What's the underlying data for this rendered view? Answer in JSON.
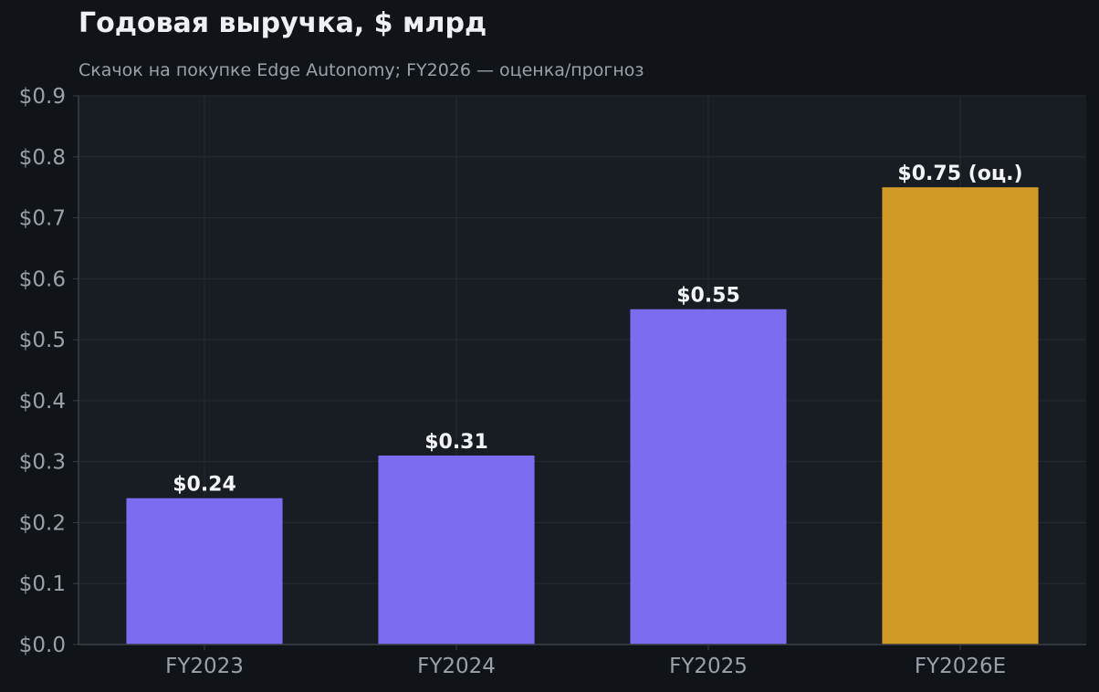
{
  "chart_data": {
    "type": "bar",
    "title": "Годовая выручка, $ млрд",
    "subtitle": "Скачок на покупке Edge Autonomy; FY2026 — оценка/прогноз",
    "xlabel": "",
    "ylabel": "",
    "categories": [
      "FY2023",
      "FY2024",
      "FY2025",
      "FY2026E"
    ],
    "values": [
      0.24,
      0.31,
      0.55,
      0.75
    ],
    "data_labels": [
      "$0.24",
      "$0.31",
      "$0.55",
      "$0.75 (оц.)"
    ],
    "bar_colors": [
      "#7b6cf0",
      "#7b6cf0",
      "#7b6cf0",
      "#d19a26"
    ],
    "ylim": [
      0,
      0.9
    ],
    "y_ticks": [
      0,
      0.1,
      0.2,
      0.3,
      0.4,
      0.5,
      0.6,
      0.7,
      0.8,
      0.9
    ],
    "y_tick_labels": [
      "$0.0",
      "$0.1",
      "$0.2",
      "$0.3",
      "$0.4",
      "$0.5",
      "$0.6",
      "$0.7",
      "$0.8",
      "$0.9"
    ],
    "grid": true,
    "legend": "none"
  },
  "colors": {
    "page_background": "#101418",
    "plot_background": "#181c23",
    "grid": "#262b33",
    "axis": "#3a3f47"
  }
}
